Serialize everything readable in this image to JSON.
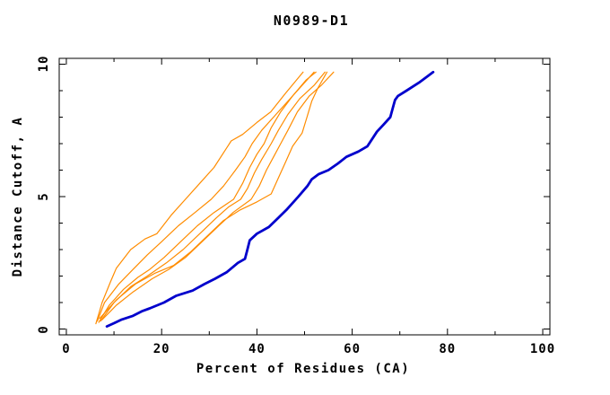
{
  "title": "N0989-D1",
  "colors": {
    "background": "#ffffff",
    "axis": "#000000",
    "text": "#000000",
    "model_orange": "#ff8c00",
    "target_blue": "#0000cc"
  },
  "chart_data": {
    "type": "line",
    "title": "N0989-D1",
    "xlabel": "Percent of Residues (CA)",
    "ylabel": "Distance Cutoff, A",
    "xlim": [
      0,
      100
    ],
    "ylim": [
      0,
      10
    ],
    "grid": false,
    "legend": "none",
    "x_major_ticks": [
      0,
      20,
      40,
      60,
      80,
      100
    ],
    "x_minor_ticks": [
      10,
      30,
      50,
      70,
      90
    ],
    "y_major_ticks": [
      0,
      5,
      10
    ],
    "y_minor_ticks": [
      1,
      2,
      3,
      4,
      6,
      7,
      8,
      9
    ],
    "series": [
      {
        "name": "orange-curve-1",
        "color": "#ff8c00",
        "width": 1.2,
        "points": [
          [
            6.2,
            0.2
          ],
          [
            7.5,
            1.0
          ],
          [
            9.3,
            1.8
          ],
          [
            10.5,
            2.3
          ],
          [
            13.5,
            3.0
          ],
          [
            16.5,
            3.4
          ],
          [
            19,
            3.6
          ],
          [
            22,
            4.3
          ],
          [
            25,
            4.9
          ],
          [
            28,
            5.5
          ],
          [
            31,
            6.1
          ],
          [
            34.6,
            7.1
          ],
          [
            37,
            7.35
          ],
          [
            40,
            7.8
          ],
          [
            42.9,
            8.2
          ],
          [
            46,
            8.9
          ],
          [
            49.7,
            9.7
          ]
        ]
      },
      {
        "name": "orange-curve-2",
        "color": "#ff8c00",
        "width": 1.2,
        "points": [
          [
            6.5,
            0.3
          ],
          [
            8,
            1.0
          ],
          [
            11,
            1.7
          ],
          [
            14,
            2.25
          ],
          [
            17,
            2.8
          ],
          [
            20,
            3.3
          ],
          [
            23.5,
            3.9
          ],
          [
            27,
            4.4
          ],
          [
            30.4,
            4.9
          ],
          [
            33,
            5.4
          ],
          [
            35.5,
            6.0
          ],
          [
            37.5,
            6.5
          ],
          [
            39,
            7.0
          ],
          [
            41,
            7.5
          ],
          [
            44,
            8.1
          ],
          [
            47.5,
            8.8
          ],
          [
            50,
            9.3
          ],
          [
            52,
            9.7
          ]
        ]
      },
      {
        "name": "orange-curve-3",
        "color": "#ff8c00",
        "width": 1.2,
        "points": [
          [
            6.8,
            0.25
          ],
          [
            9,
            0.9
          ],
          [
            12,
            1.5
          ],
          [
            15,
            1.95
          ],
          [
            17.5,
            2.25
          ],
          [
            20.5,
            2.7
          ],
          [
            24,
            3.3
          ],
          [
            27.5,
            3.9
          ],
          [
            31,
            4.4
          ],
          [
            35.1,
            4.9
          ],
          [
            37,
            5.5
          ],
          [
            38.5,
            6.1
          ],
          [
            40,
            6.6
          ],
          [
            41.5,
            7.0
          ],
          [
            43,
            7.6
          ],
          [
            45,
            8.2
          ],
          [
            47.5,
            8.8
          ],
          [
            50.3,
            9.4
          ],
          [
            52.4,
            9.7
          ]
        ]
      },
      {
        "name": "orange-curve-4",
        "color": "#ff8c00",
        "width": 1.2,
        "points": [
          [
            7.2,
            0.3
          ],
          [
            10,
            1.0
          ],
          [
            13.5,
            1.6
          ],
          [
            17,
            2.0
          ],
          [
            21,
            2.5
          ],
          [
            24.5,
            3.0
          ],
          [
            28,
            3.6
          ],
          [
            31.5,
            4.2
          ],
          [
            34,
            4.6
          ],
          [
            36.6,
            4.9
          ],
          [
            38,
            5.3
          ],
          [
            39.5,
            5.9
          ],
          [
            41,
            6.4
          ],
          [
            43,
            7.0
          ],
          [
            44.5,
            7.5
          ],
          [
            46.5,
            8.1
          ],
          [
            49,
            8.7
          ],
          [
            52,
            9.2
          ],
          [
            54.3,
            9.7
          ]
        ]
      },
      {
        "name": "orange-curve-5",
        "color": "#ff8c00",
        "width": 1.2,
        "points": [
          [
            7.5,
            0.35
          ],
          [
            10.5,
            0.9
          ],
          [
            14,
            1.4
          ],
          [
            18,
            1.9
          ],
          [
            21.5,
            2.25
          ],
          [
            25,
            2.7
          ],
          [
            28.5,
            3.3
          ],
          [
            32,
            3.9
          ],
          [
            35,
            4.4
          ],
          [
            38.8,
            4.9
          ],
          [
            40.5,
            5.4
          ],
          [
            42,
            6.0
          ],
          [
            43.5,
            6.5
          ],
          [
            45,
            7.0
          ],
          [
            46.5,
            7.5
          ],
          [
            48.5,
            8.2
          ],
          [
            51,
            8.8
          ],
          [
            53.5,
            9.2
          ],
          [
            56.1,
            9.7
          ]
        ]
      },
      {
        "name": "orange-curve-6",
        "color": "#ff8c00",
        "width": 1.2,
        "points": [
          [
            7.0,
            0.4
          ],
          [
            10.5,
            1.1
          ],
          [
            14.5,
            1.7
          ],
          [
            18.5,
            2.1
          ],
          [
            22.5,
            2.4
          ],
          [
            26,
            2.9
          ],
          [
            29.5,
            3.5
          ],
          [
            33,
            4.1
          ],
          [
            36.5,
            4.5
          ],
          [
            40,
            4.8
          ],
          [
            43,
            5.1
          ],
          [
            44.5,
            5.7
          ],
          [
            46,
            6.3
          ],
          [
            47.5,
            6.9
          ],
          [
            49.5,
            7.4
          ],
          [
            50.5,
            8.0
          ],
          [
            51.5,
            8.6
          ],
          [
            52.8,
            9.1
          ],
          [
            54.7,
            9.7
          ]
        ]
      },
      {
        "name": "blue-curve",
        "color": "#0000cc",
        "width": 2.8,
        "points": [
          [
            8.5,
            0.1
          ],
          [
            10,
            0.22
          ],
          [
            11.5,
            0.35
          ],
          [
            14,
            0.5
          ],
          [
            16,
            0.68
          ],
          [
            17.5,
            0.78
          ],
          [
            20.5,
            1.0
          ],
          [
            23,
            1.25
          ],
          [
            26.5,
            1.45
          ],
          [
            29,
            1.7
          ],
          [
            31.2,
            1.9
          ],
          [
            33.7,
            2.15
          ],
          [
            36,
            2.5
          ],
          [
            37.5,
            2.65
          ],
          [
            38,
            3.0
          ],
          [
            38.5,
            3.35
          ],
          [
            40,
            3.6
          ],
          [
            42.5,
            3.85
          ],
          [
            44.5,
            4.2
          ],
          [
            46.2,
            4.5
          ],
          [
            48.7,
            5.0
          ],
          [
            50.6,
            5.4
          ],
          [
            51.5,
            5.65
          ],
          [
            53,
            5.85
          ],
          [
            55,
            6.0
          ],
          [
            57,
            6.25
          ],
          [
            58.8,
            6.5
          ],
          [
            61.3,
            6.7
          ],
          [
            63.2,
            6.9
          ],
          [
            65.2,
            7.45
          ],
          [
            66.5,
            7.7
          ],
          [
            68,
            8.0
          ],
          [
            68.6,
            8.4
          ],
          [
            69,
            8.65
          ],
          [
            69.6,
            8.8
          ],
          [
            71.4,
            9.0
          ],
          [
            74,
            9.3
          ],
          [
            75.5,
            9.5
          ],
          [
            77,
            9.7
          ]
        ]
      }
    ]
  }
}
